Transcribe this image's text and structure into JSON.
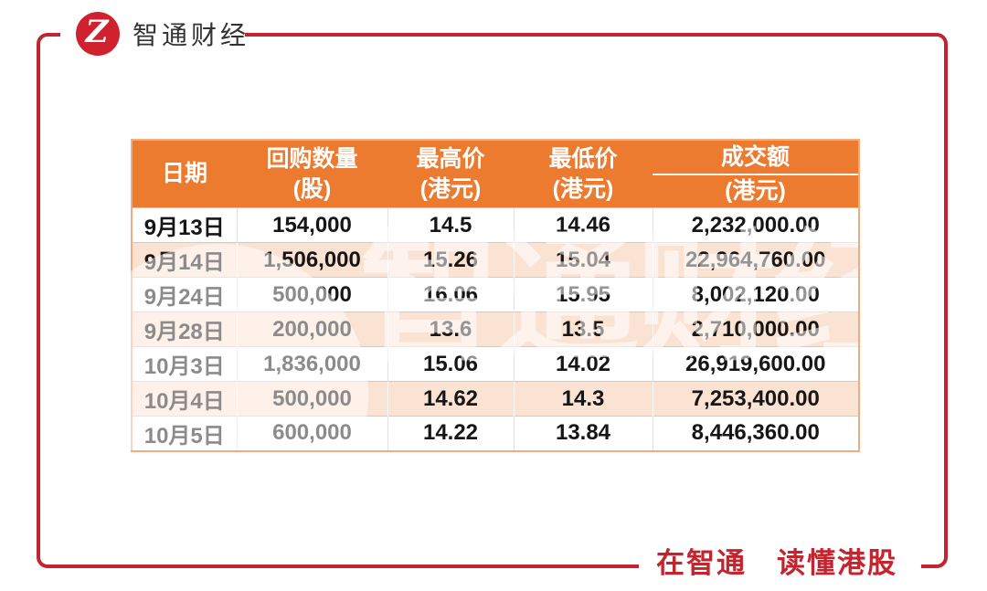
{
  "brand": {
    "logo_glyph": "Z",
    "name": "智通财经"
  },
  "chart_data": {
    "type": "table",
    "columns": [
      {
        "l1": "日期",
        "l2": "",
        "rule": false
      },
      {
        "l1": "回购数量",
        "l2": "(股)",
        "rule": false
      },
      {
        "l1": "最高价",
        "l2": "(港元)",
        "rule": false
      },
      {
        "l1": "最低价",
        "l2": "(港元)",
        "rule": false
      },
      {
        "l1": "成交额",
        "l2": "(港元)",
        "rule": true
      }
    ],
    "rows": [
      [
        "9月13日",
        "154,000",
        "14.5",
        "14.46",
        "2,232,000.00"
      ],
      [
        "9月14日",
        "1,506,000",
        "15.26",
        "15.04",
        "22,964,760.00"
      ],
      [
        "9月24日",
        "500,000",
        "16.06",
        "15.95",
        "8,002,120.00"
      ],
      [
        "9月28日",
        "200,000",
        "13.6",
        "13.5",
        "2,710,000.00"
      ],
      [
        "10月3日",
        "1,836,000",
        "15.06",
        "14.02",
        "26,919,600.00"
      ],
      [
        "10月4日",
        "500,000",
        "14.62",
        "14.3",
        "7,253,400.00"
      ],
      [
        "10月5日",
        "600,000",
        "14.22",
        "13.84",
        "8,446,360.00"
      ]
    ]
  },
  "footer": {
    "slogan": "在智通　读懂港股"
  },
  "watermark": {
    "text": "智通财经"
  },
  "colors": {
    "accent_red": "#C3242E",
    "header_orange": "#EC7B30",
    "row_peach": "#FBE3D4"
  }
}
